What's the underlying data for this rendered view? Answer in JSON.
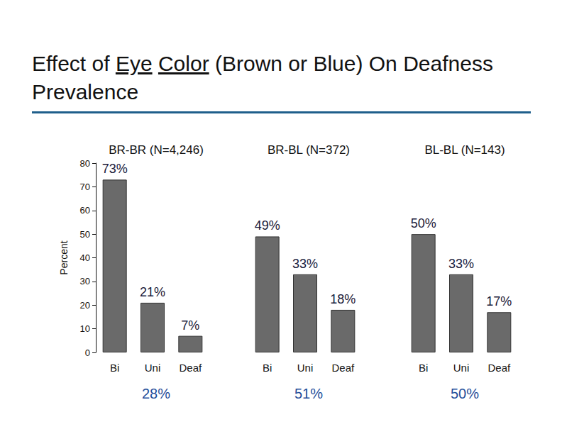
{
  "title": "Effect of Eye Color (Brown or Blue) On Deafness Prevalence",
  "underlined": [
    "Eye",
    "Color"
  ],
  "chart_data": [
    {
      "type": "bar",
      "title": "BR-BR (N=4,246)",
      "categories": [
        "Bi",
        "Uni",
        "Deaf"
      ],
      "values": [
        73,
        21,
        7
      ],
      "value_labels": [
        "73%",
        "21%",
        "7%"
      ],
      "color": "#6a6a6a",
      "ylim": [
        0,
        80
      ],
      "yticks": [
        0,
        10,
        20,
        30,
        40,
        50,
        60,
        70,
        80
      ],
      "y_label": "Percent",
      "grid": false,
      "data_labels": true,
      "tick_labels": true,
      "annotation": "28%"
    },
    {
      "type": "bar",
      "title": "BR-BL (N=372)",
      "categories": [
        "Bi",
        "Uni",
        "Deaf"
      ],
      "values": [
        49,
        33,
        18
      ],
      "value_labels": [
        "49%",
        "33%",
        "18%"
      ],
      "color": "#6a6a6a",
      "ylim": [
        0,
        80
      ],
      "yticks": [
        0,
        10,
        20,
        30,
        40,
        50,
        60,
        70,
        80
      ],
      "grid": false,
      "data_labels": true,
      "tick_labels": "x",
      "annotation": "51%"
    },
    {
      "type": "bar",
      "title": "BL-BL (N=143)",
      "categories": [
        "Bi",
        "Uni",
        "Deaf"
      ],
      "values": [
        50,
        33,
        17
      ],
      "value_labels": [
        "50%",
        "33%",
        "17%"
      ],
      "color": "#6a6a6a",
      "ylim": [
        0,
        80
      ],
      "yticks": [
        0,
        10,
        20,
        30,
        40,
        50,
        60,
        70,
        80
      ],
      "grid": false,
      "data_labels": true,
      "tick_labels": "x",
      "annotation": "50%"
    }
  ]
}
